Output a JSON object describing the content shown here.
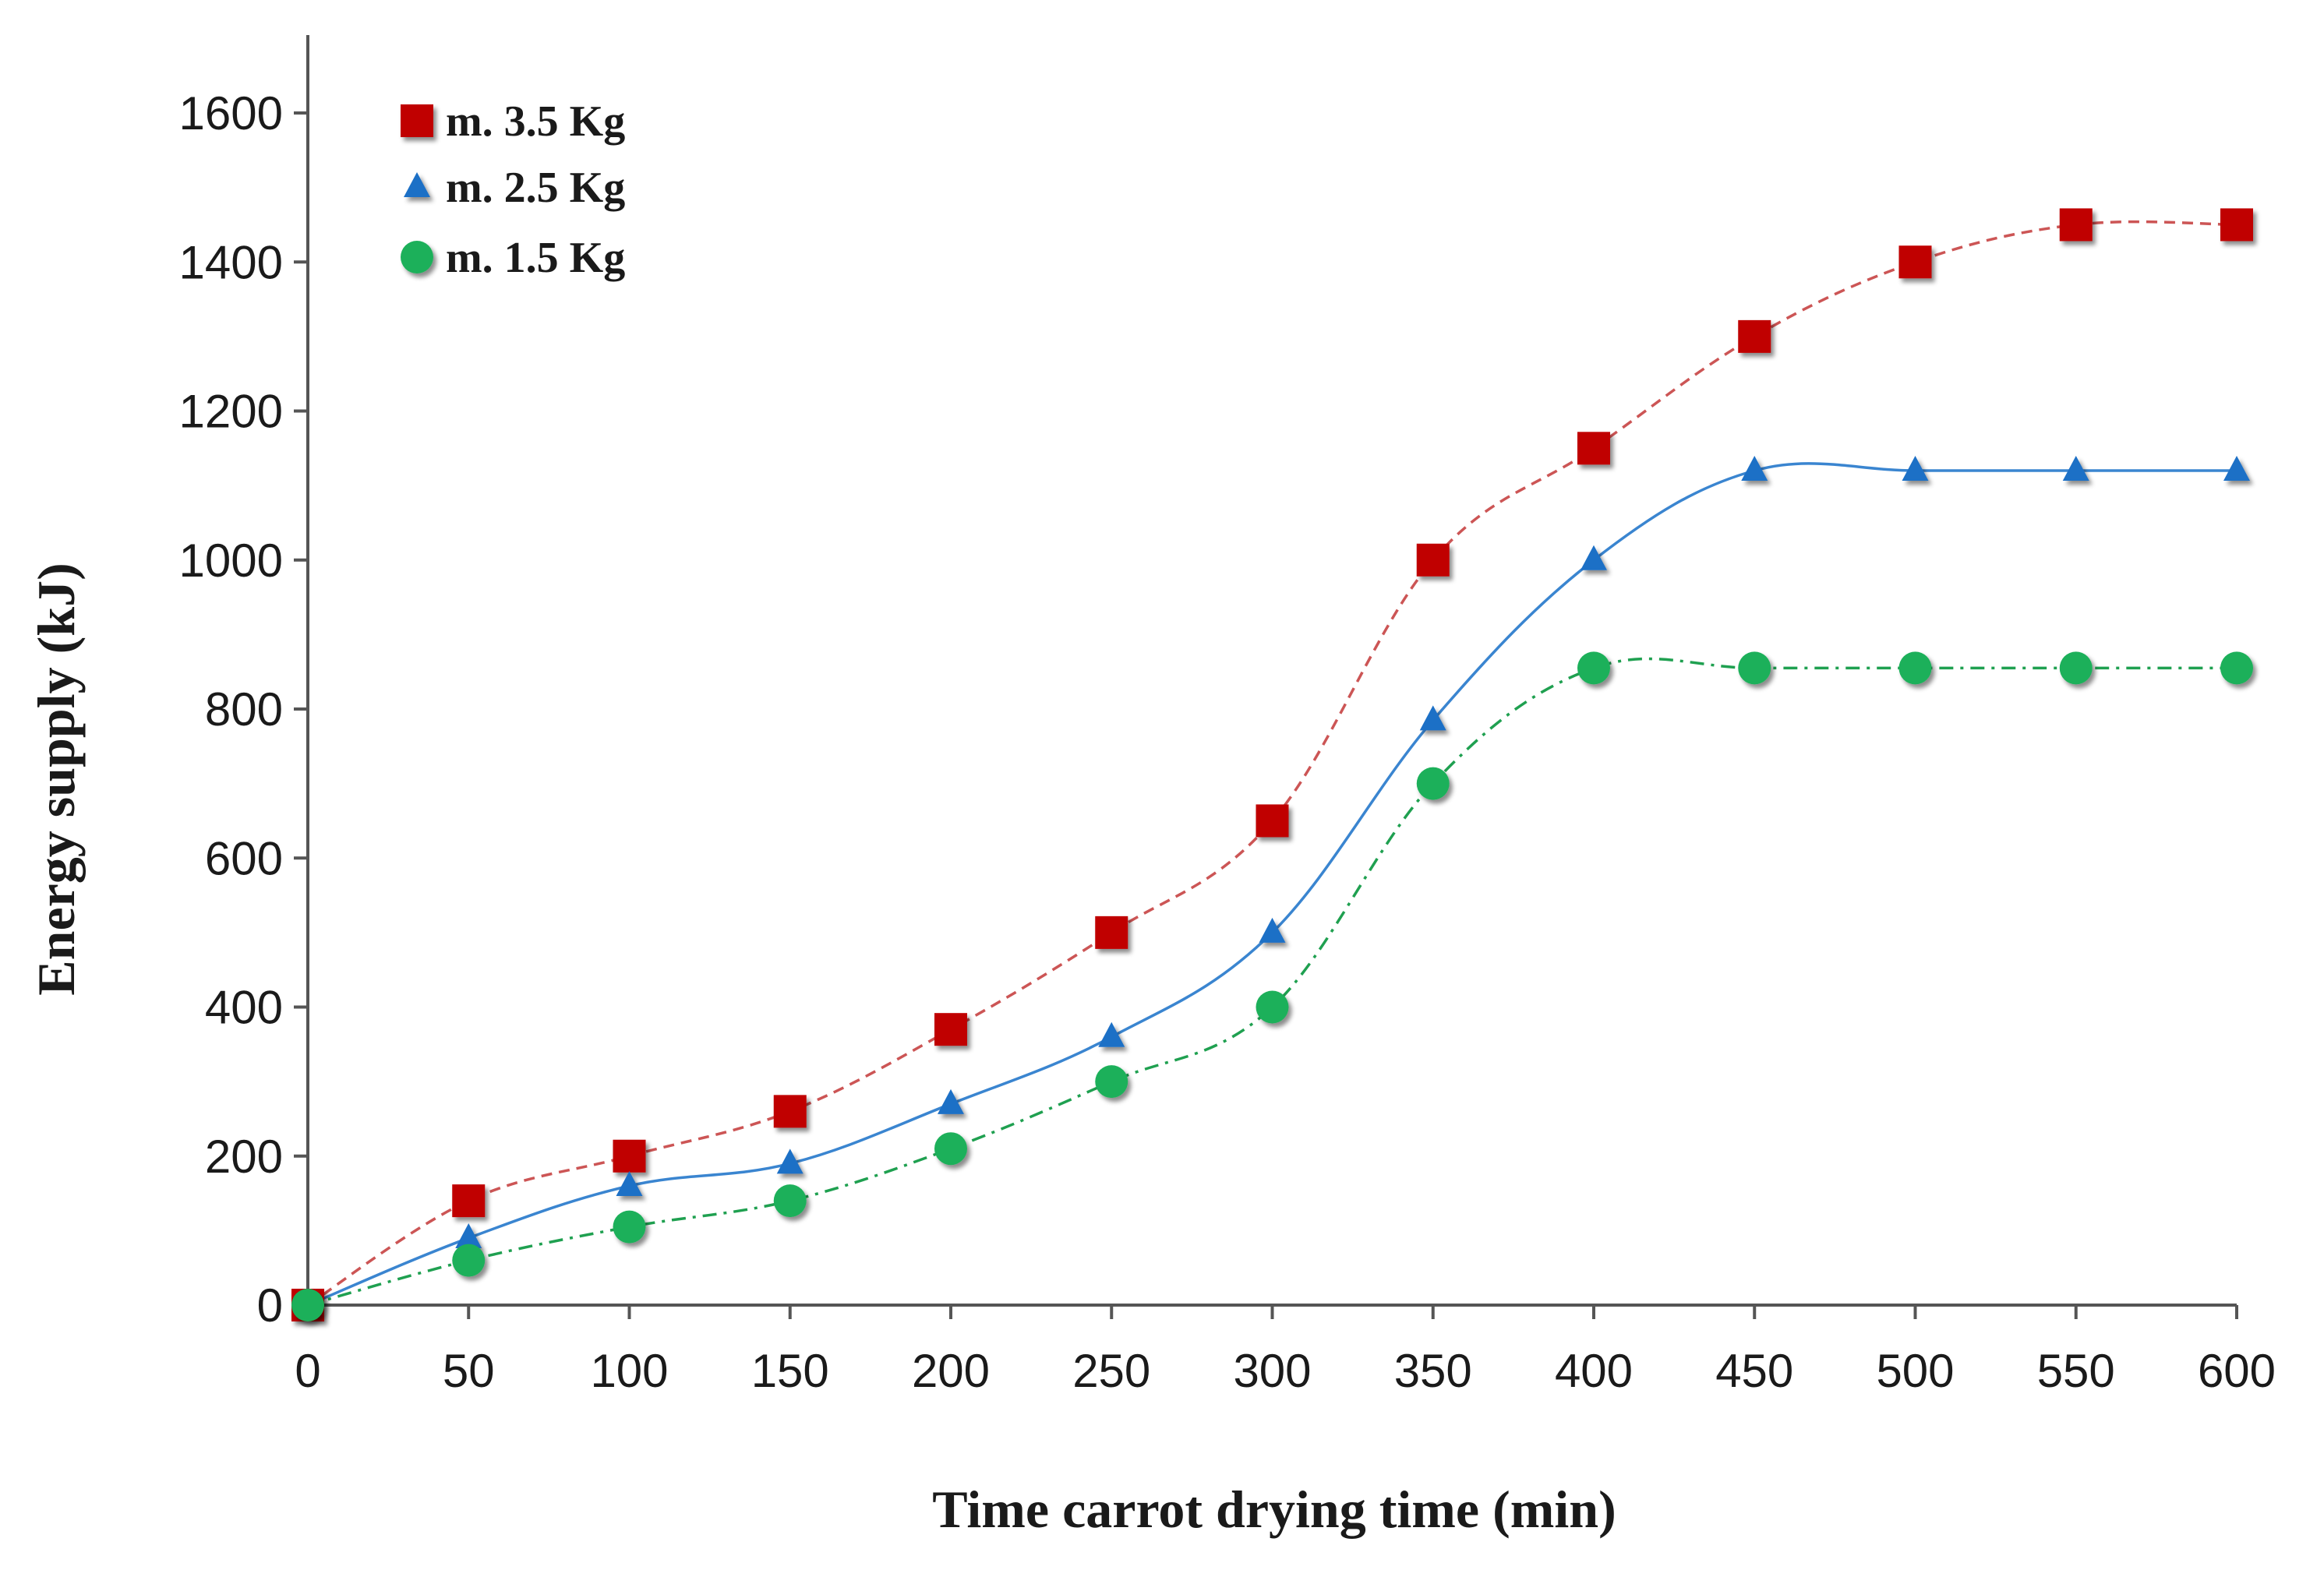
{
  "chart_data": {
    "type": "line",
    "title": "",
    "xlabel": "Time carrot drying time (min)",
    "ylabel": "Energy supply (kJ)",
    "xlim": [
      0,
      600
    ],
    "ylim": [
      0,
      1700
    ],
    "x_ticks": [
      0,
      50,
      100,
      150,
      200,
      250,
      300,
      350,
      400,
      450,
      500,
      550,
      600
    ],
    "y_ticks": [
      0,
      200,
      400,
      600,
      800,
      1000,
      1200,
      1400,
      1600
    ],
    "grid": false,
    "legend_position": "top-left",
    "x": [
      0,
      50,
      100,
      150,
      200,
      250,
      300,
      350,
      400,
      450,
      500,
      550,
      600
    ],
    "series": [
      {
        "name": "m. 3.5 Kg",
        "marker": "square",
        "line_style": "dashed",
        "color": "#c00000",
        "line_color": "#cc5555",
        "values": [
          0,
          140,
          200,
          260,
          370,
          500,
          650,
          1000,
          1150,
          1300,
          1400,
          1450,
          1450
        ]
      },
      {
        "name": "m. 2.5 Kg",
        "marker": "triangle",
        "line_style": "solid",
        "color": "#1f6fc6",
        "line_color": "#3a85d0",
        "values": [
          0,
          90,
          160,
          190,
          270,
          360,
          500,
          785,
          1000,
          1120,
          1120,
          1120,
          1120
        ]
      },
      {
        "name": "m. 1.5 Kg",
        "marker": "circle",
        "line_style": "dash-dot",
        "color": "#1fb05a",
        "line_color": "#1fa050",
        "values": [
          0,
          60,
          105,
          140,
          210,
          300,
          400,
          700,
          855,
          855,
          855,
          855,
          855
        ]
      }
    ]
  }
}
